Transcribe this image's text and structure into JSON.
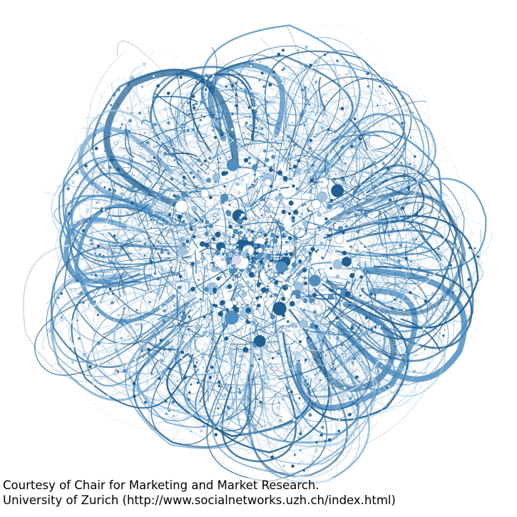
{
  "caption": {
    "line1": "Courtesy of Chair for Marketing and Market Research.",
    "line2": "University of Zurich (http://www.socialnetworks.uzh.ch/index.html)"
  },
  "figure": {
    "type": "network-graph",
    "colors": {
      "background": "#ffffff",
      "dark": "#1f5f92",
      "mid": "#4f8fc0",
      "light": "#9ec4e0",
      "pale": "#d6e6f2",
      "lavender": "#dcdcec"
    }
  }
}
